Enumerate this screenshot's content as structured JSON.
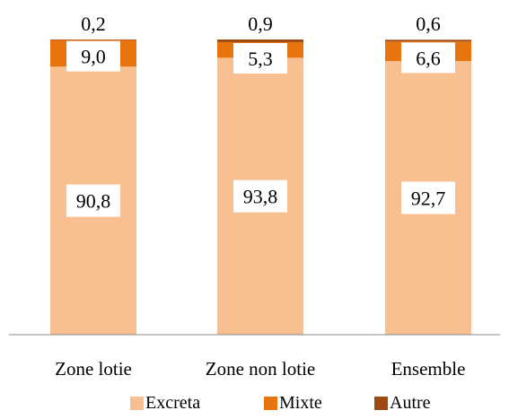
{
  "chart_data": {
    "type": "bar",
    "stacked": true,
    "percent": true,
    "categories": [
      "Zone lotie",
      "Zone non lotie",
      "Ensemble"
    ],
    "series": [
      {
        "name": "Excreta",
        "values": [
          90.8,
          93.8,
          92.7
        ],
        "labels": [
          "90,8",
          "93,8",
          "92,7"
        ],
        "color": "#F8C090"
      },
      {
        "name": "Mixte",
        "values": [
          9.0,
          5.3,
          6.6
        ],
        "labels": [
          "9,0",
          "5,3",
          "6,6"
        ],
        "color": "#E8740F"
      },
      {
        "name": "Autre",
        "values": [
          0.2,
          0.9,
          0.6
        ],
        "labels": [
          "0,2",
          "0,9",
          "0,6"
        ],
        "color": "#9E4A12"
      }
    ],
    "ylim": [
      0,
      100
    ],
    "grid": false,
    "legend_position": "bottom"
  }
}
